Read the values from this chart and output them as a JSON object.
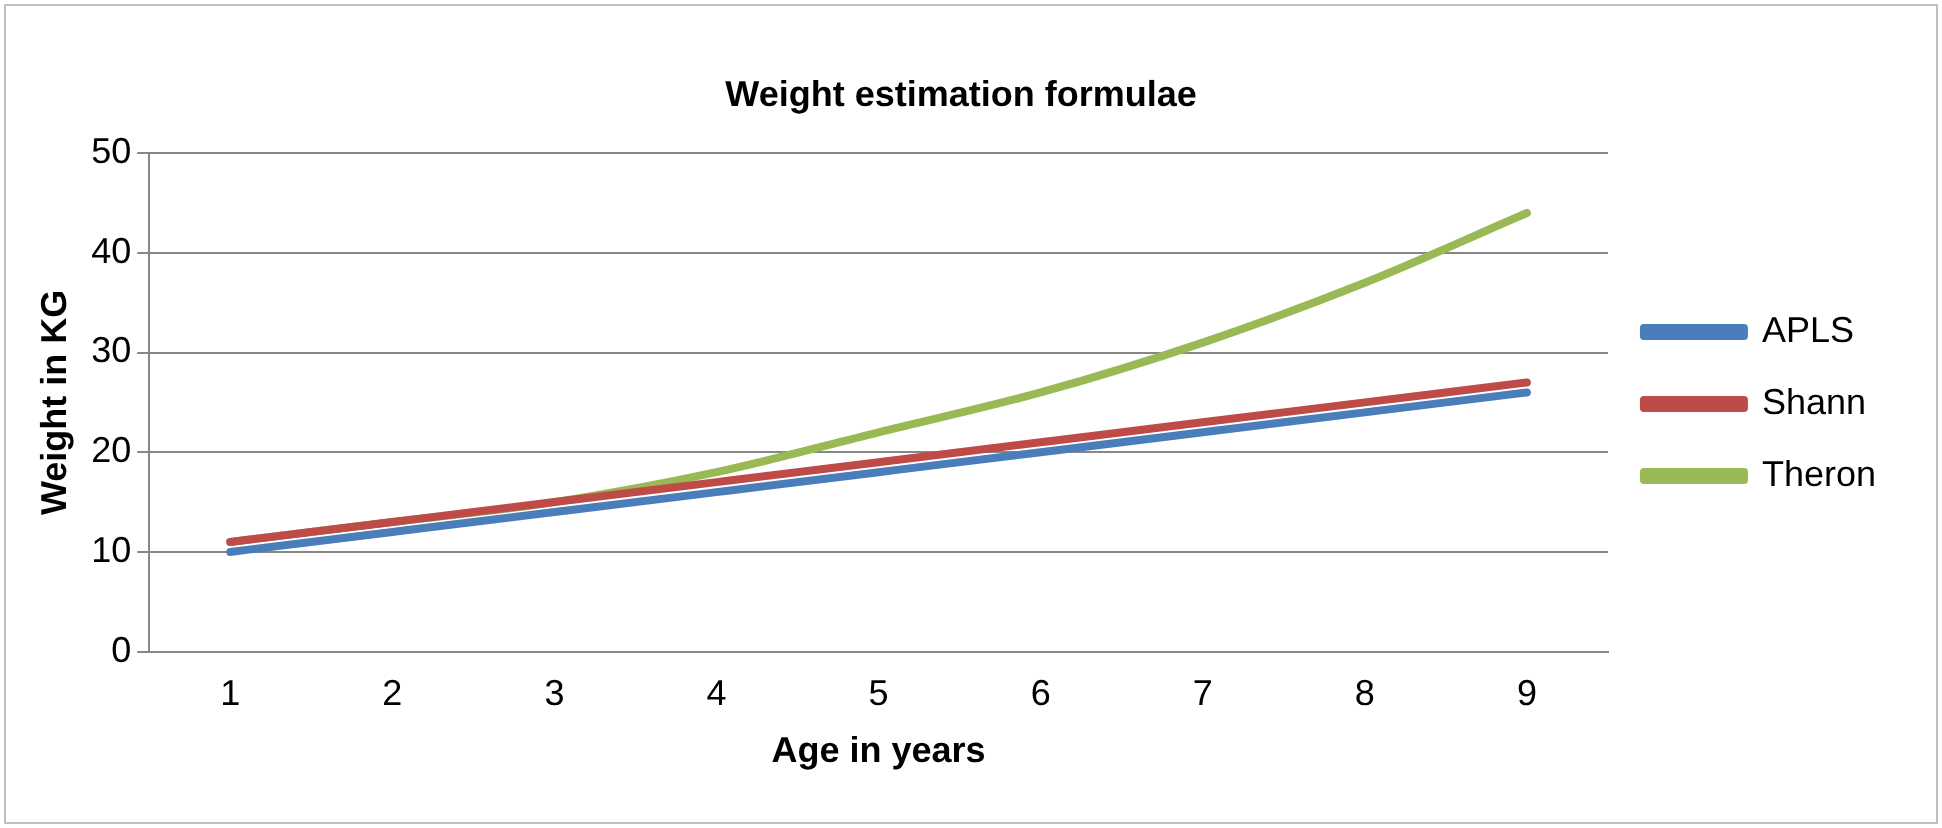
{
  "chart_data": {
    "type": "line",
    "title": "Weight estimation formulae",
    "xlabel": "Age in years",
    "ylabel": "Weight in KG",
    "categories": [
      "1",
      "2",
      "3",
      "4",
      "5",
      "6",
      "7",
      "8",
      "9"
    ],
    "series": [
      {
        "name": "APLS",
        "color": "#4a7ebb",
        "values": [
          10,
          12,
          14,
          16,
          18,
          20,
          22,
          24,
          26
        ]
      },
      {
        "name": "Shann",
        "color": "#be4b48",
        "values": [
          11,
          13,
          15,
          17,
          19,
          21,
          23,
          25,
          27
        ]
      },
      {
        "name": "Theron",
        "color": "#98b954",
        "values": [
          11,
          13,
          15,
          18,
          22,
          26,
          31,
          37,
          44
        ]
      }
    ],
    "ylim": [
      0,
      50
    ],
    "yticks": [
      0,
      10,
      20,
      30,
      40,
      50
    ],
    "grid": "y",
    "legend": "right",
    "marker": "none",
    "line_style": "solid"
  }
}
